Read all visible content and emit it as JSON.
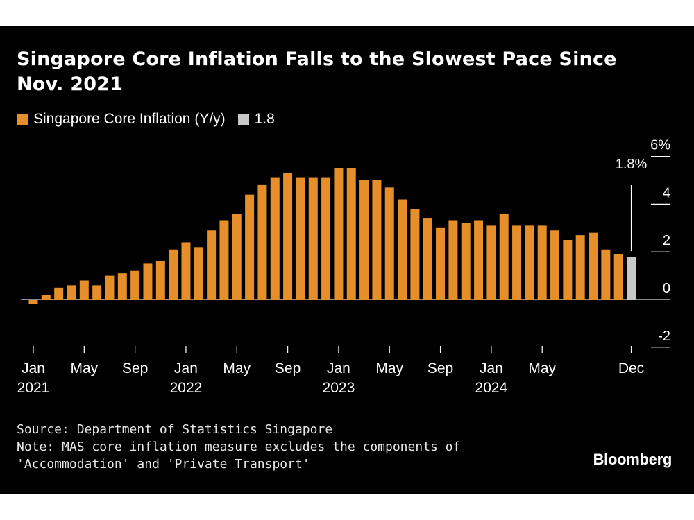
{
  "title": "Singapore Core Inflation Falls to the Slowest Pace Since Nov. 2021",
  "source": "Source: Department of Statistics Singapore",
  "note_line1": "Note: MAS core inflation measure excludes the components of",
  "note_line2": "'Accommodation' and 'Private Transport'",
  "brand": "Bloomberg",
  "colors": {
    "background": "#000000",
    "bar": "#e58e2a",
    "highlight": "#c8c8c8",
    "text": "#ffffff"
  },
  "chart_data": {
    "type": "bar",
    "legend": [
      {
        "label": "Singapore Core Inflation (Y/y)",
        "color": "#e58e2a"
      },
      {
        "label": "1.8",
        "color": "#c8c8c8"
      }
    ],
    "ylim": [
      -2,
      6
    ],
    "y_ticks": [
      {
        "value": 6,
        "label": "6%"
      },
      {
        "value": 4,
        "label": "4"
      },
      {
        "value": 2,
        "label": "2"
      },
      {
        "value": 0,
        "label": "0"
      },
      {
        "value": -2,
        "label": "-2"
      }
    ],
    "x_ticks": [
      {
        "index": 0,
        "label": "Jan",
        "year": "2021"
      },
      {
        "index": 4,
        "label": "May",
        "year": ""
      },
      {
        "index": 8,
        "label": "Sep",
        "year": ""
      },
      {
        "index": 12,
        "label": "Jan",
        "year": "2022"
      },
      {
        "index": 16,
        "label": "May",
        "year": ""
      },
      {
        "index": 20,
        "label": "Sep",
        "year": ""
      },
      {
        "index": 24,
        "label": "Jan",
        "year": "2023"
      },
      {
        "index": 28,
        "label": "May",
        "year": ""
      },
      {
        "index": 32,
        "label": "Sep",
        "year": ""
      },
      {
        "index": 36,
        "label": "Jan",
        "year": "2024"
      },
      {
        "index": 40,
        "label": "May",
        "year": ""
      },
      {
        "index": 47,
        "label": "Dec",
        "year": ""
      }
    ],
    "series": [
      {
        "name": "Singapore Core Inflation (Y/y)",
        "start": "2021-01",
        "values": [
          -0.2,
          0.2,
          0.5,
          0.6,
          0.8,
          0.6,
          1.0,
          1.1,
          1.2,
          1.5,
          1.6,
          2.1,
          2.4,
          2.2,
          2.9,
          3.3,
          3.6,
          4.4,
          4.8,
          5.1,
          5.3,
          5.1,
          5.1,
          5.1,
          5.5,
          5.5,
          5.0,
          5.0,
          4.7,
          4.2,
          3.8,
          3.4,
          3.0,
          3.3,
          3.2,
          3.3,
          3.1,
          3.6,
          3.1,
          3.1,
          3.1,
          2.9,
          2.5,
          2.7,
          2.8,
          2.1,
          1.9,
          1.8
        ]
      }
    ],
    "highlight_index": 47,
    "annotation": "1.8%"
  }
}
